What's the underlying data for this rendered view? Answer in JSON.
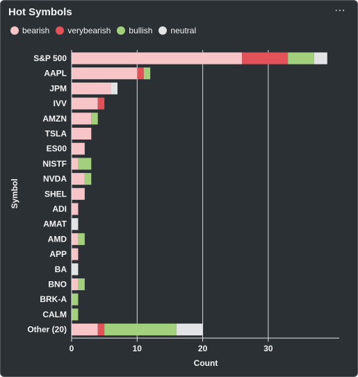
{
  "widget": {
    "title": "Hot Symbols",
    "menu_icon": "more-horizontal-icon",
    "menu_label": "⋯"
  },
  "chart_data": {
    "type": "bar",
    "orientation": "horizontal",
    "stacked": true,
    "categories": [
      "S&P 500",
      "AAPL",
      "JPM",
      "IVV",
      "AMZN",
      "TSLA",
      "ES00",
      "NISTF",
      "NVDA",
      "SHEL",
      "ADI",
      "AMAT",
      "AMD",
      "APP",
      "BA",
      "BNO",
      "BRK-A",
      "CALM",
      "Other (20)"
    ],
    "series": [
      {
        "name": "bearish",
        "color": "#f7c5c8",
        "values": [
          26,
          10,
          6,
          4,
          3,
          3,
          2,
          1,
          2,
          2,
          1,
          0,
          1,
          1,
          0,
          1,
          0,
          0,
          4
        ]
      },
      {
        "name": "verybearish",
        "color": "#e35259",
        "values": [
          7,
          1,
          0,
          1,
          0,
          0,
          0,
          0,
          0,
          0,
          0,
          0,
          0,
          0,
          0,
          0,
          0,
          0,
          1
        ]
      },
      {
        "name": "bullish",
        "color": "#a2d07d",
        "values": [
          4,
          1,
          0,
          0,
          1,
          0,
          0,
          2,
          1,
          0,
          0,
          0,
          1,
          0,
          0,
          1,
          1,
          1,
          11
        ]
      },
      {
        "name": "neutral",
        "color": "#e1e3e5",
        "values": [
          2,
          0,
          1,
          0,
          0,
          0,
          0,
          0,
          0,
          0,
          0,
          1,
          0,
          0,
          1,
          0,
          0,
          0,
          4
        ]
      }
    ],
    "xlabel": "Count",
    "ylabel": "Symbol",
    "xlim": [
      0,
      41
    ],
    "xticks": [
      "0",
      "10",
      "20",
      "30"
    ],
    "xtick_values": [
      0,
      10,
      20,
      30
    ],
    "grid": "vertical",
    "legend_position": "top-left"
  }
}
